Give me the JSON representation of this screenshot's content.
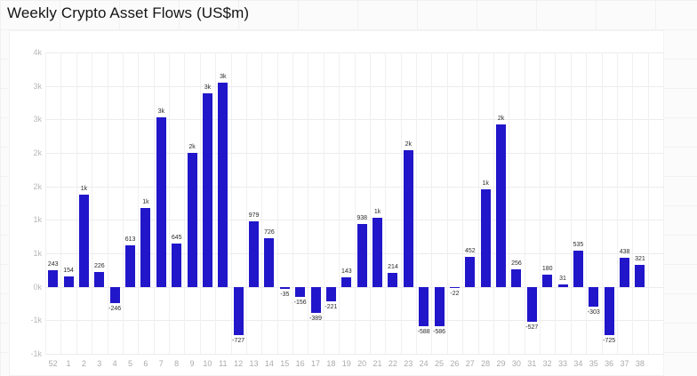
{
  "title": "Weekly Crypto Asset Flows (US$m)",
  "colors": {
    "bar": "#2116c9",
    "bar_label": "#2b2b2b",
    "axis_label": "#b0b0b0",
    "grid": "#ececec",
    "card_bg": "#ffffff",
    "page_bg": "#fbfbfb"
  },
  "chart_data": {
    "type": "bar",
    "title": "Weekly Crypto Asset Flows (US$m)",
    "units": "US$m",
    "xlabel": "",
    "ylabel": "",
    "categories": [
      "52",
      "1",
      "2",
      "3",
      "4",
      "5",
      "6",
      "7",
      "8",
      "9",
      "10",
      "11",
      "12",
      "13",
      "14",
      "15",
      "16",
      "17",
      "18",
      "19",
      "20",
      "21",
      "22",
      "23",
      "24",
      "25",
      "26",
      "27",
      "28",
      "29",
      "30",
      "31",
      "32",
      "33",
      "34",
      "35",
      "36",
      "37",
      "38"
    ],
    "values": [
      243,
      154,
      1370,
      226,
      -246,
      613,
      1180,
      2530,
      645,
      2000,
      2890,
      3050,
      -727,
      979,
      726,
      -35,
      -156,
      -389,
      -221,
      143,
      938,
      1030,
      214,
      2040,
      -588,
      -586,
      -22,
      452,
      1450,
      2430,
      256,
      -527,
      180,
      31,
      535,
      -303,
      -725,
      438,
      321
    ],
    "bar_labels": [
      "243",
      "154",
      "1k",
      "226",
      "-246",
      "613",
      "1k",
      "3k",
      "645",
      "2k",
      "3k",
      "3k",
      "-727",
      "979",
      "726",
      "-35",
      "-156",
      "-389",
      "-221",
      "143",
      "938",
      "1k",
      "214",
      "2k",
      "-588",
      "-586",
      "-22",
      "452",
      "1k",
      "2k",
      "256",
      "-527",
      "180",
      "31",
      "535",
      "-303",
      "-725",
      "438",
      "321"
    ],
    "ylim": [
      -1000,
      3500
    ],
    "ytick_step": 500,
    "ytick_values_top_to_bottom": [
      3500,
      3000,
      2500,
      2000,
      1500,
      1000,
      500,
      0,
      -500,
      -1000
    ],
    "ytick_labels_top_to_bottom": [
      "4k",
      "3k",
      "3k",
      "2k",
      "2k",
      "1k",
      "1k",
      "0k",
      "-1k",
      "-1k"
    ],
    "grid": true,
    "legend": null
  }
}
